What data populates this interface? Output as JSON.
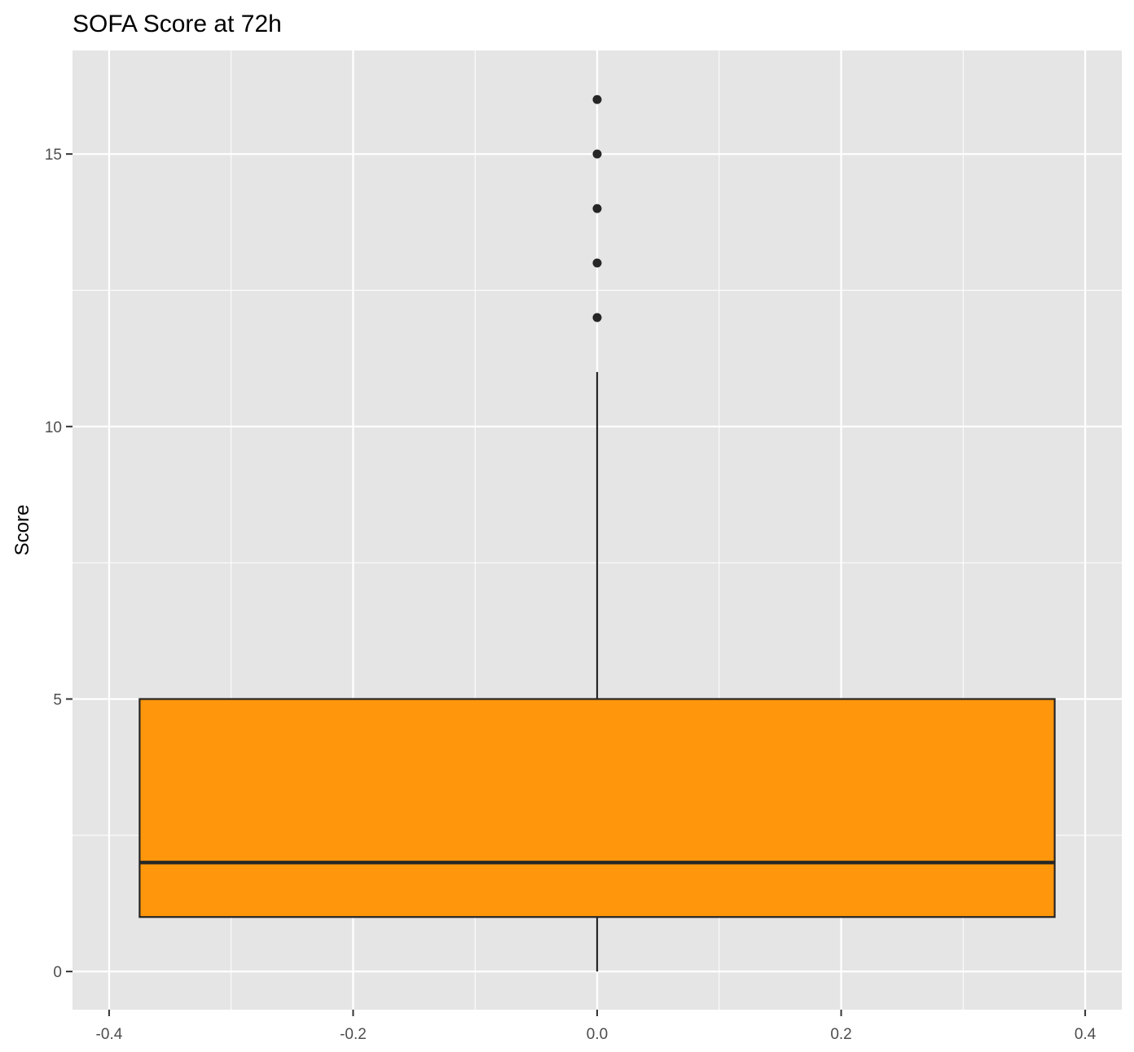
{
  "chart_data": {
    "type": "box",
    "title": "SOFA Score at 72h",
    "xlabel": "",
    "ylabel": "Score",
    "xlim": [
      -0.43,
      0.43
    ],
    "ylim": [
      -0.7,
      16.9
    ],
    "x_ticks": [
      {
        "value": -0.4,
        "label": "-0.4"
      },
      {
        "value": -0.2,
        "label": "-0.2"
      },
      {
        "value": 0.0,
        "label": "0.0"
      },
      {
        "value": 0.2,
        "label": "0.2"
      },
      {
        "value": 0.4,
        "label": "0.4"
      }
    ],
    "y_ticks": [
      {
        "value": 0,
        "label": "0"
      },
      {
        "value": 5,
        "label": "5"
      },
      {
        "value": 10,
        "label": "10"
      },
      {
        "value": 15,
        "label": "15"
      }
    ],
    "x_minor_ticks": [
      -0.3,
      -0.1,
      0.1,
      0.3
    ],
    "y_minor_ticks": [
      2.5,
      7.5,
      12.5
    ],
    "grid": true,
    "box": {
      "x_left": -0.375,
      "x_right": 0.375,
      "x_center": 0.0,
      "whisker_low": 0,
      "q1": 1,
      "median": 2,
      "q3": 5,
      "whisker_high": 11,
      "outliers": [
        12,
        13,
        14,
        15,
        16
      ]
    },
    "colors": {
      "panel_background": "#e5e5e5",
      "grid": "#ffffff",
      "box_fill": "#ff960b",
      "box_stroke": "#262626",
      "outlier": "#262626",
      "tick_mark": "#333333",
      "tick_label": "#4d4d4d"
    }
  }
}
